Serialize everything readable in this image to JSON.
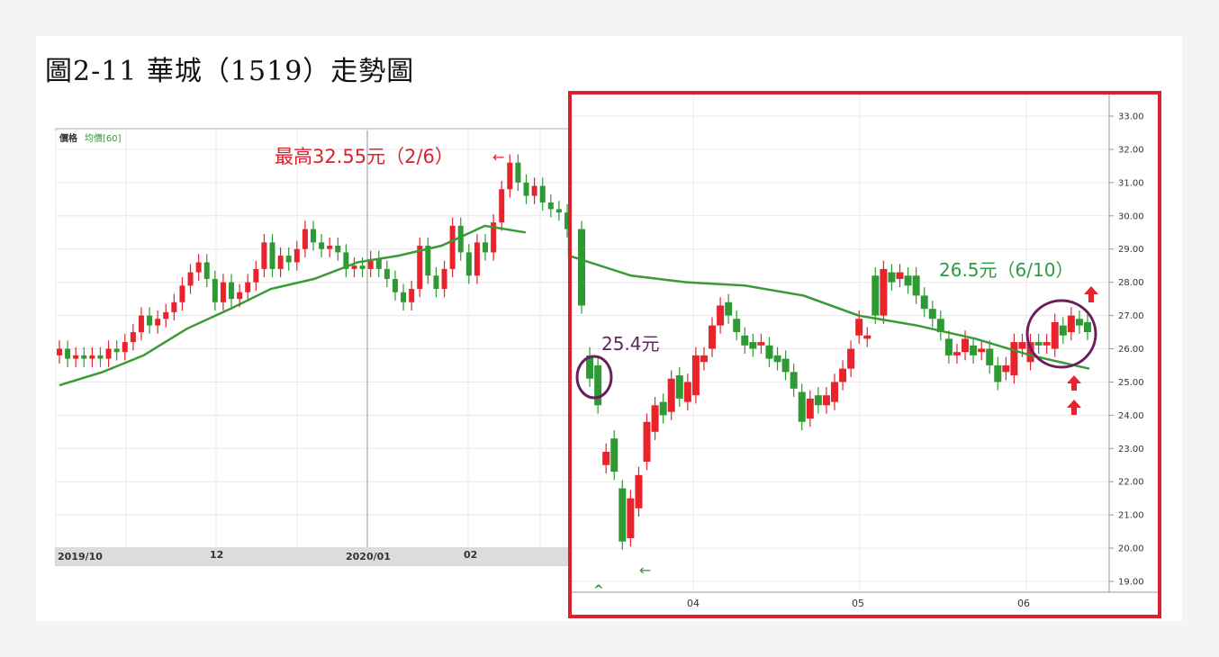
{
  "figure_title": "圖2-11 華城（1519）走勢圖",
  "left_panel": {
    "legend_price": "價格",
    "legend_ma": "均價[60]",
    "x_labels": [
      "2019/10",
      "12",
      "2020/01",
      "02"
    ]
  },
  "right_panel": {
    "x_labels": [
      "04",
      "05",
      "06"
    ],
    "y_ticks": [
      "33.00",
      "32.00",
      "31.00",
      "30.00",
      "29.00",
      "28.00",
      "27.00",
      "26.00",
      "25.00",
      "24.00",
      "23.00",
      "22.00",
      "21.00",
      "20.00",
      "19.00"
    ]
  },
  "annotations": {
    "high": "最高32.55元（2/6）",
    "left_marker": "25.4元",
    "right_marker": "26.5元（6/10）",
    "arrow_left": "←",
    "arrow_caret": "^"
  },
  "colors": {
    "up": "#e8232c",
    "down": "#2e9a33",
    "ma": "#3a9a35",
    "highlight_box": "#d8232f",
    "circle": "#6a1f5c",
    "high_text": "#d8232f",
    "marker_left_text": "#5a2a5a",
    "marker_right_text": "#2e9a44"
  },
  "chart_data": {
    "type": "candlestick",
    "title": "",
    "ylim": [
      19,
      33
    ],
    "y_ticks": [
      33,
      32,
      31,
      30,
      29,
      28,
      27,
      26,
      25,
      24,
      23,
      22,
      21,
      20,
      19
    ],
    "ma_label": "均價[60]",
    "left_window_candles": [
      {
        "o": 25.8,
        "c": 26.0
      },
      {
        "o": 26.0,
        "c": 25.7
      },
      {
        "o": 25.7,
        "c": 25.8
      },
      {
        "o": 25.8,
        "c": 25.7
      },
      {
        "o": 25.7,
        "c": 25.8
      },
      {
        "o": 25.8,
        "c": 25.7
      },
      {
        "o": 25.7,
        "c": 26.0
      },
      {
        "o": 26.0,
        "c": 25.9
      },
      {
        "o": 25.9,
        "c": 26.2
      },
      {
        "o": 26.2,
        "c": 26.5
      },
      {
        "o": 26.5,
        "c": 27.0
      },
      {
        "o": 27.0,
        "c": 26.7
      },
      {
        "o": 26.7,
        "c": 26.9
      },
      {
        "o": 26.9,
        "c": 27.1
      },
      {
        "o": 27.1,
        "c": 27.4
      },
      {
        "o": 27.4,
        "c": 27.9
      },
      {
        "o": 27.9,
        "c": 28.3
      },
      {
        "o": 28.3,
        "c": 28.6
      },
      {
        "o": 28.6,
        "c": 28.1
      },
      {
        "o": 28.1,
        "c": 27.4
      },
      {
        "o": 27.4,
        "c": 28.0
      },
      {
        "o": 28.0,
        "c": 27.5
      },
      {
        "o": 27.5,
        "c": 27.7
      },
      {
        "o": 27.7,
        "c": 28.0
      },
      {
        "o": 28.0,
        "c": 28.4
      },
      {
        "o": 28.4,
        "c": 29.2
      },
      {
        "o": 29.2,
        "c": 28.4
      },
      {
        "o": 28.4,
        "c": 28.8
      },
      {
        "o": 28.8,
        "c": 28.6
      },
      {
        "o": 28.6,
        "c": 29.0
      },
      {
        "o": 29.0,
        "c": 29.6
      },
      {
        "o": 29.6,
        "c": 29.2
      },
      {
        "o": 29.2,
        "c": 29.0
      },
      {
        "o": 29.0,
        "c": 29.1
      },
      {
        "o": 29.1,
        "c": 28.9
      },
      {
        "o": 28.9,
        "c": 28.4
      },
      {
        "o": 28.4,
        "c": 28.5
      },
      {
        "o": 28.5,
        "c": 28.4
      },
      {
        "o": 28.4,
        "c": 28.7
      },
      {
        "o": 28.7,
        "c": 28.4
      },
      {
        "o": 28.4,
        "c": 28.1
      },
      {
        "o": 28.1,
        "c": 27.7
      },
      {
        "o": 27.7,
        "c": 27.4
      },
      {
        "o": 27.4,
        "c": 27.8
      },
      {
        "o": 27.8,
        "c": 29.1
      },
      {
        "o": 29.1,
        "c": 28.2
      },
      {
        "o": 28.2,
        "c": 27.8
      },
      {
        "o": 27.8,
        "c": 28.4
      },
      {
        "o": 28.4,
        "c": 29.7
      },
      {
        "o": 29.7,
        "c": 28.9
      },
      {
        "o": 28.9,
        "c": 28.2
      },
      {
        "o": 28.2,
        "c": 29.2
      },
      {
        "o": 29.2,
        "c": 28.9
      },
      {
        "o": 28.9,
        "c": 29.8
      },
      {
        "o": 29.8,
        "c": 30.8
      },
      {
        "o": 30.8,
        "c": 31.6
      },
      {
        "o": 31.6,
        "c": 31.0
      },
      {
        "o": 31.0,
        "c": 30.6
      },
      {
        "o": 30.6,
        "c": 30.9
      },
      {
        "o": 30.9,
        "c": 30.4
      },
      {
        "o": 30.4,
        "c": 30.2
      },
      {
        "o": 30.2,
        "c": 30.1
      },
      {
        "o": 30.1,
        "c": 29.6
      }
    ],
    "right_window_candles": [
      {
        "o": 29.6,
        "c": 27.3
      },
      {
        "o": 25.8,
        "c": 25.1
      },
      {
        "o": 25.5,
        "c": 24.3
      },
      {
        "o": 22.5,
        "c": 22.9
      },
      {
        "o": 23.3,
        "c": 22.3
      },
      {
        "o": 21.8,
        "c": 20.2
      },
      {
        "o": 20.3,
        "c": 21.5
      },
      {
        "o": 21.2,
        "c": 22.2
      },
      {
        "o": 22.6,
        "c": 23.8
      },
      {
        "o": 23.5,
        "c": 24.3
      },
      {
        "o": 24.4,
        "c": 24.0
      },
      {
        "o": 24.1,
        "c": 25.1
      },
      {
        "o": 25.2,
        "c": 24.5
      },
      {
        "o": 24.4,
        "c": 25.0
      },
      {
        "o": 24.6,
        "c": 25.8
      },
      {
        "o": 25.6,
        "c": 25.8
      },
      {
        "o": 26.0,
        "c": 26.7
      },
      {
        "o": 26.7,
        "c": 27.3
      },
      {
        "o": 27.4,
        "c": 27.0
      },
      {
        "o": 26.9,
        "c": 26.5
      },
      {
        "o": 26.4,
        "c": 26.1
      },
      {
        "o": 26.2,
        "c": 26.0
      },
      {
        "o": 26.1,
        "c": 26.2
      },
      {
        "o": 26.1,
        "c": 25.7
      },
      {
        "o": 25.8,
        "c": 25.6
      },
      {
        "o": 25.7,
        "c": 25.3
      },
      {
        "o": 25.3,
        "c": 24.8
      },
      {
        "o": 24.7,
        "c": 23.8
      },
      {
        "o": 23.9,
        "c": 24.5
      },
      {
        "o": 24.6,
        "c": 24.3
      },
      {
        "o": 24.3,
        "c": 24.6
      },
      {
        "o": 24.4,
        "c": 25.0
      },
      {
        "o": 25.0,
        "c": 25.4
      },
      {
        "o": 25.4,
        "c": 26.0
      },
      {
        "o": 26.4,
        "c": 26.9
      },
      {
        "o": 26.3,
        "c": 26.4
      },
      {
        "o": 28.2,
        "c": 27.0
      },
      {
        "o": 27.0,
        "c": 28.4
      },
      {
        "o": 28.3,
        "c": 28.0
      },
      {
        "o": 28.1,
        "c": 28.3
      },
      {
        "o": 28.2,
        "c": 27.9
      },
      {
        "o": 28.2,
        "c": 27.6
      },
      {
        "o": 27.6,
        "c": 27.2
      },
      {
        "o": 27.2,
        "c": 26.9
      },
      {
        "o": 26.9,
        "c": 26.5
      },
      {
        "o": 26.3,
        "c": 25.8
      },
      {
        "o": 25.8,
        "c": 25.9
      },
      {
        "o": 25.9,
        "c": 26.3
      },
      {
        "o": 26.1,
        "c": 25.8
      },
      {
        "o": 25.9,
        "c": 26.0
      },
      {
        "o": 26.0,
        "c": 25.5
      },
      {
        "o": 25.5,
        "c": 25.0
      },
      {
        "o": 25.3,
        "c": 25.5
      },
      {
        "o": 25.2,
        "c": 26.2
      },
      {
        "o": 26.0,
        "c": 26.2
      },
      {
        "o": 25.6,
        "c": 26.2
      },
      {
        "o": 26.2,
        "c": 26.1
      },
      {
        "o": 26.1,
        "c": 26.2
      },
      {
        "o": 26.0,
        "c": 26.8
      },
      {
        "o": 26.7,
        "c": 26.4
      },
      {
        "o": 26.5,
        "c": 27.0
      },
      {
        "o": 26.9,
        "c": 26.7
      },
      {
        "o": 26.8,
        "c": 26.5
      }
    ],
    "ma_points": [
      {
        "t": 0,
        "v": 24.9
      },
      {
        "t": 0.17,
        "v": 25.3
      },
      {
        "t": 0.33,
        "v": 25.8
      },
      {
        "t": 0.5,
        "v": 26.6
      },
      {
        "t": 0.67,
        "v": 27.2
      },
      {
        "t": 0.83,
        "v": 27.8
      },
      {
        "t": 1,
        "v": 28.1
      },
      {
        "t": 1.17,
        "v": 28.6
      },
      {
        "t": 1.33,
        "v": 28.8
      },
      {
        "t": 1.5,
        "v": 29.1
      },
      {
        "t": 1.67,
        "v": 29.7
      },
      {
        "t": 1.83,
        "v": 29.5
      },
      {
        "t": 2,
        "v": 28.8
      },
      {
        "t": 2.17,
        "v": 28.2
      },
      {
        "t": 2.33,
        "v": 28.0
      },
      {
        "t": 2.5,
        "v": 27.9
      },
      {
        "t": 2.67,
        "v": 27.6
      },
      {
        "t": 2.83,
        "v": 27.0
      },
      {
        "t": 3,
        "v": 26.7
      },
      {
        "t": 3.17,
        "v": 26.3
      },
      {
        "t": 3.33,
        "v": 25.8
      },
      {
        "t": 3.5,
        "v": 25.4
      }
    ]
  }
}
